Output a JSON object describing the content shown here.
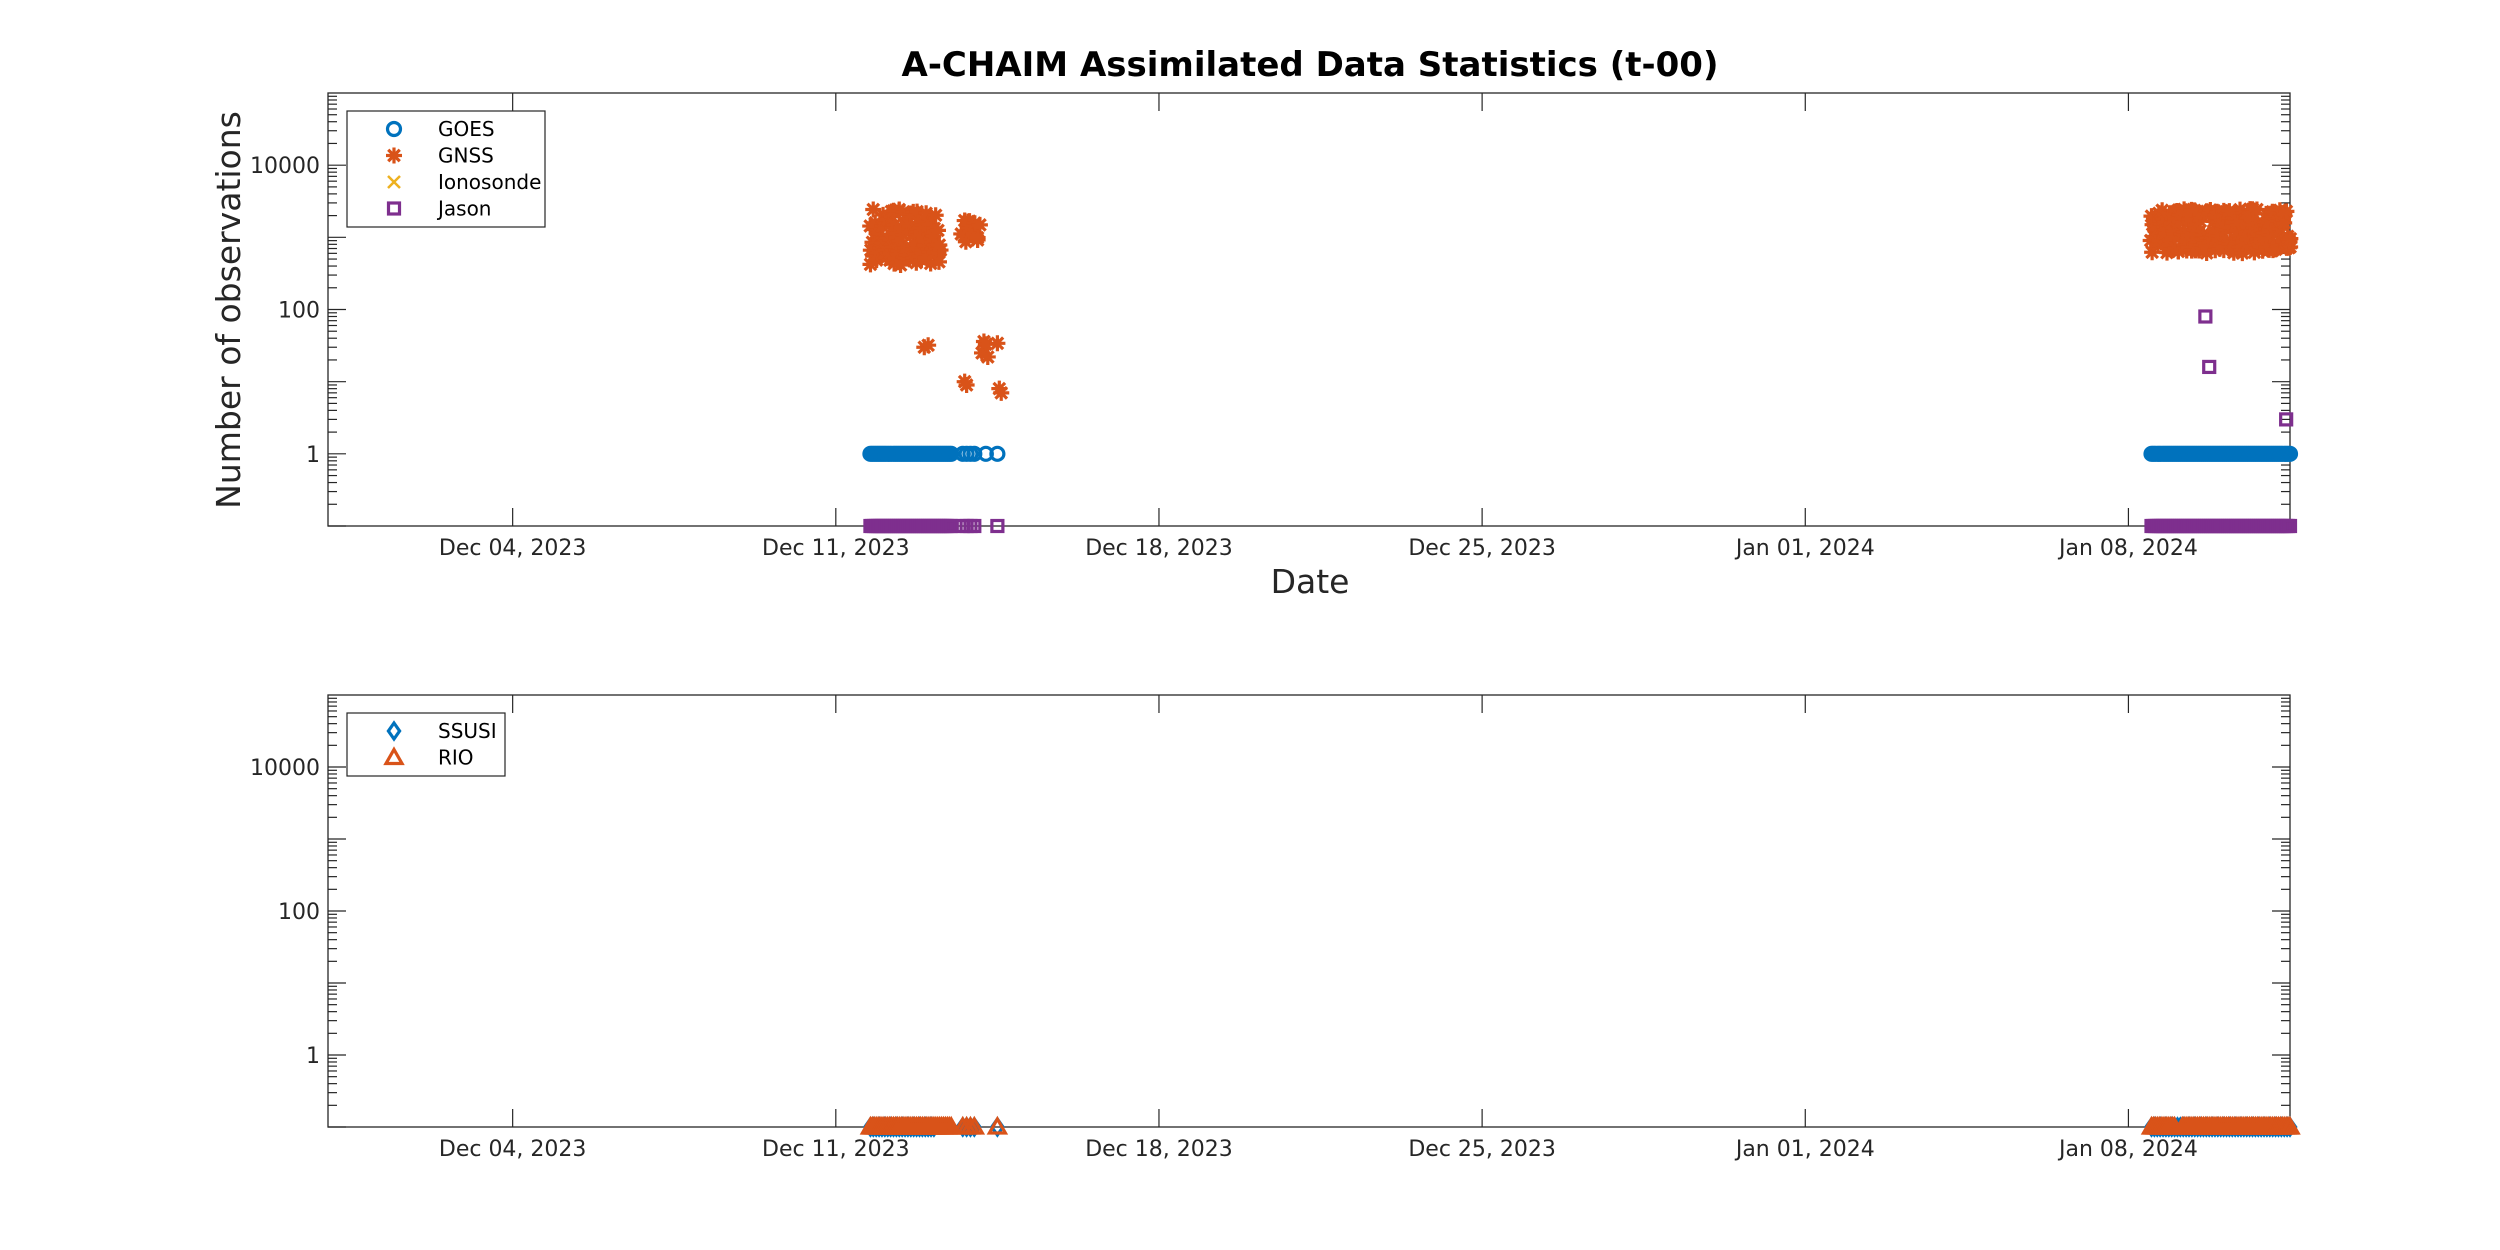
{
  "colors": {
    "GOES": "#0072BD",
    "GNSS": "#D95319",
    "Ionosonde": "#EDB120",
    "Jason": "#7E2F8E",
    "SSUSI": "#0072BD",
    "RIO": "#D95319"
  },
  "chart_data": [
    {
      "type": "scatter",
      "title": "A-CHAIM Assimilated Data Statistics (t-00)",
      "xlabel": "Date",
      "ylabel": "Number of observations",
      "yscale": "log",
      "xlim": [
        "2023-11-30T00:00",
        "2024-01-11T12:00"
      ],
      "ylim": [
        0.1,
        100000
      ],
      "xticks": [
        "Dec 04, 2023",
        "Dec 11, 2023",
        "Dec 18, 2023",
        "Dec 25, 2023",
        "Jan 01, 2024",
        "Jan 08, 2024"
      ],
      "yticks": [
        "1",
        "100",
        "10000"
      ],
      "legend_position": "top-left",
      "series": [
        {
          "name": "GOES",
          "marker": "circle",
          "segments": [
            {
              "start": "2023-12-11T18:00",
              "end": "2023-12-13T12:00",
              "step_hours": 1,
              "value": 1
            },
            {
              "start": "2023-12-13T18:00",
              "end": "2023-12-14T00:00",
              "step_hours": 2,
              "value": 1
            },
            {
              "start": "2023-12-14T06:00",
              "end": "2023-12-14T06:00",
              "step_hours": 1,
              "value": 1
            },
            {
              "start": "2023-12-14T12:00",
              "end": "2023-12-14T12:00",
              "step_hours": 1,
              "value": 1
            },
            {
              "start": "2024-01-08T12:00",
              "end": "2024-01-11T12:00",
              "step_hours": 1,
              "value": 1
            }
          ]
        },
        {
          "name": "GNSS",
          "marker": "asterisk",
          "clusters": [
            {
              "start": "2023-12-11T18:00",
              "end": "2023-12-13T06:00",
              "step_hours": 1,
              "min": 400,
              "max": 2500
            },
            {
              "start": "2023-12-13T18:00",
              "end": "2023-12-14T02:00",
              "step_hours": 2,
              "min": 850,
              "max": 1800
            },
            {
              "start": "2024-01-08T12:00",
              "end": "2024-01-11T12:00",
              "step_hours": 1,
              "min": 600,
              "max": 2500
            }
          ],
          "points": [
            {
              "x": "2023-12-12T22:00",
              "y": 30
            },
            {
              "x": "2023-12-13T00:00",
              "y": 32
            },
            {
              "x": "2023-12-13T19:00",
              "y": 10
            },
            {
              "x": "2023-12-13T20:00",
              "y": 9
            },
            {
              "x": "2023-12-14T04:00",
              "y": 25
            },
            {
              "x": "2023-12-14T05:00",
              "y": 36
            },
            {
              "x": "2023-12-14T06:00",
              "y": 33
            },
            {
              "x": "2023-12-14T07:00",
              "y": 22
            },
            {
              "x": "2023-12-14T12:00",
              "y": 34
            },
            {
              "x": "2023-12-14T13:00",
              "y": 8
            },
            {
              "x": "2023-12-14T14:00",
              "y": 7
            }
          ]
        },
        {
          "name": "Ionosonde",
          "marker": "x",
          "points": []
        },
        {
          "name": "Jason",
          "marker": "square",
          "segments": [
            {
              "start": "2023-12-11T18:00",
              "end": "2023-12-13T12:00",
              "step_hours": 1,
              "value": 0.1
            },
            {
              "start": "2023-12-13T18:00",
              "end": "2023-12-14T00:00",
              "step_hours": 2,
              "value": 0.1
            },
            {
              "start": "2023-12-14T12:00",
              "end": "2023-12-14T12:00",
              "step_hours": 1,
              "value": 0.1
            },
            {
              "start": "2024-01-08T12:00",
              "end": "2024-01-11T12:00",
              "step_hours": 1,
              "value": 0.1
            }
          ],
          "points": [
            {
              "x": "2024-01-09T16:00",
              "y": 80
            },
            {
              "x": "2024-01-09T18:00",
              "y": 16
            },
            {
              "x": "2024-01-11T10:00",
              "y": 3
            }
          ]
        }
      ]
    },
    {
      "type": "scatter",
      "title": "",
      "xlabel": "",
      "ylabel": "",
      "yscale": "log",
      "xlim": [
        "2023-11-30T00:00",
        "2024-01-11T12:00"
      ],
      "ylim": [
        0.1,
        100000
      ],
      "xticks": [
        "Dec 04, 2023",
        "Dec 11, 2023",
        "Dec 18, 2023",
        "Dec 25, 2023",
        "Jan 01, 2024",
        "Jan 08, 2024"
      ],
      "yticks": [
        "1",
        "100",
        "10000"
      ],
      "legend_position": "top-left",
      "series": [
        {
          "name": "SSUSI",
          "marker": "diamond",
          "segments": [
            {
              "start": "2023-12-11T18:00",
              "end": "2023-12-13T03:00",
              "step_hours": 1.5,
              "value": 0.1
            },
            {
              "start": "2023-12-13T18:00",
              "end": "2023-12-14T00:00",
              "step_hours": 2,
              "value": 0.1
            },
            {
              "start": "2023-12-14T12:00",
              "end": "2023-12-14T12:00",
              "step_hours": 1,
              "value": 0.1
            },
            {
              "start": "2024-01-08T12:00",
              "end": "2024-01-11T12:00",
              "step_hours": 1.5,
              "value": 0.1
            }
          ]
        },
        {
          "name": "RIO",
          "marker": "triangle",
          "segments": [
            {
              "start": "2023-12-11T18:00",
              "end": "2023-12-13T12:00",
              "step_hours": 1,
              "value": 0.1
            },
            {
              "start": "2023-12-13T18:00",
              "end": "2023-12-14T00:00",
              "step_hours": 2,
              "value": 0.1
            },
            {
              "start": "2023-12-14T12:00",
              "end": "2023-12-14T12:00",
              "step_hours": 1,
              "value": 0.1
            },
            {
              "start": "2024-01-08T12:00",
              "end": "2024-01-09T00:00",
              "step_hours": 1,
              "value": 0.1
            },
            {
              "start": "2024-01-09T04:00",
              "end": "2024-01-11T12:00",
              "step_hours": 1,
              "value": 0.1
            }
          ]
        }
      ]
    }
  ]
}
